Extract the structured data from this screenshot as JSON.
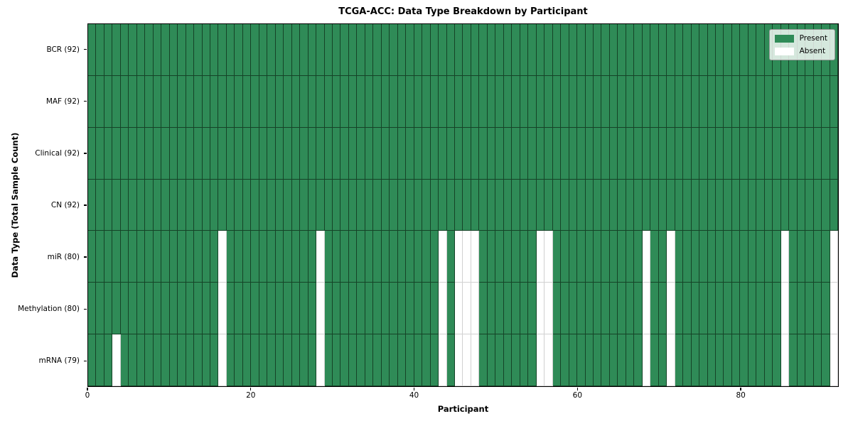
{
  "chart_data": {
    "type": "heatmap",
    "title": "TCGA-ACC: Data Type Breakdown by Participant",
    "xlabel": "Participant",
    "ylabel": "Data Type (Total Sample Count)",
    "n_participants": 92,
    "x_ticks": [
      0,
      20,
      40,
      60,
      80
    ],
    "grid": true,
    "legend_position": "upper right",
    "colors": {
      "present": "#2f8b57",
      "absent": "#ffffff"
    },
    "legend": [
      {
        "label": "Present",
        "state": "present"
      },
      {
        "label": "Absent",
        "state": "absent"
      }
    ],
    "rows": [
      {
        "label": "BCR (92)",
        "data_type": "BCR",
        "present_count": 92,
        "absent_participants": []
      },
      {
        "label": "MAF (92)",
        "data_type": "MAF",
        "present_count": 92,
        "absent_participants": []
      },
      {
        "label": "Clinical (92)",
        "data_type": "Clinical",
        "present_count": 92,
        "absent_participants": []
      },
      {
        "label": "CN (92)",
        "data_type": "CN",
        "present_count": 92,
        "absent_participants": []
      },
      {
        "label": "miR (80)",
        "data_type": "miR",
        "present_count": 80,
        "absent_participants": [
          16,
          28,
          43,
          45,
          46,
          47,
          55,
          56,
          68,
          71,
          85,
          91
        ]
      },
      {
        "label": "Methylation (80)",
        "data_type": "Methylation",
        "present_count": 80,
        "absent_participants": [
          16,
          28,
          43,
          45,
          46,
          47,
          55,
          56,
          68,
          71,
          85,
          91
        ]
      },
      {
        "label": "mRNA (79)",
        "data_type": "mRNA",
        "present_count": 79,
        "absent_participants": [
          3,
          16,
          28,
          43,
          45,
          46,
          47,
          55,
          56,
          68,
          71,
          85,
          91
        ]
      }
    ]
  }
}
